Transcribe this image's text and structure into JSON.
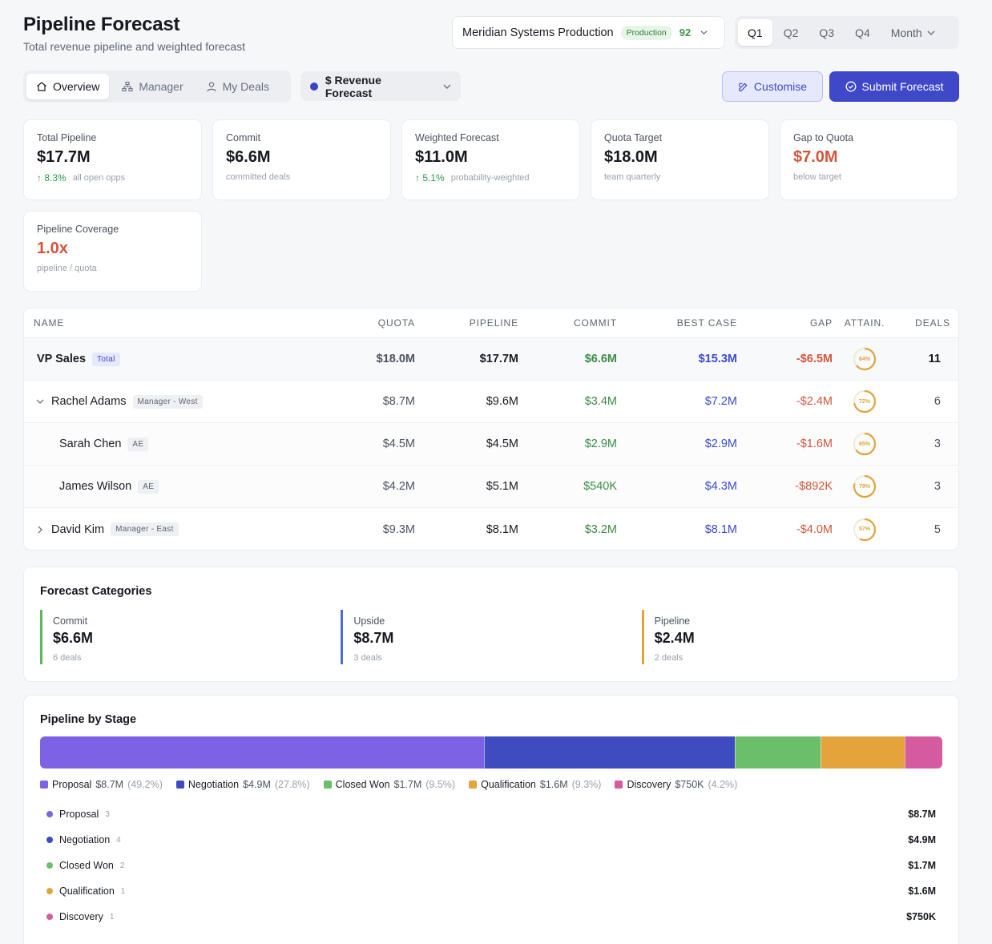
{
  "header": {
    "title": "Pipeline Forecast",
    "subtitle": "Total revenue pipeline and weighted forecast"
  },
  "org_select": {
    "name": "Meridian Systems Production",
    "badge": "Production",
    "score": "92"
  },
  "period": {
    "items": [
      "Q1",
      "Q2",
      "Q3",
      "Q4",
      "Month"
    ],
    "active": "Q1"
  },
  "tabs": [
    {
      "label": "Overview",
      "icon": "home-icon",
      "active": true
    },
    {
      "label": "Manager",
      "icon": "org-chart-icon",
      "active": false
    },
    {
      "label": "My Deals",
      "icon": "user-icon",
      "active": false
    }
  ],
  "forecast_select": {
    "label": "$ Revenue Forecast",
    "color": "#3b45c4"
  },
  "actions": {
    "customise": "Customise",
    "submit": "Submit Forecast"
  },
  "kpis": [
    {
      "label": "Total Pipeline",
      "value": "$17.7M",
      "trend": "8.3%",
      "foot": "all open opps",
      "tone": "normal"
    },
    {
      "label": "Commit",
      "value": "$6.6M",
      "trend": "",
      "foot": "committed deals",
      "tone": "normal"
    },
    {
      "label": "Weighted Forecast",
      "value": "$11.0M",
      "trend": "5.1%",
      "foot": "probability-weighted",
      "tone": "normal"
    },
    {
      "label": "Quota Target",
      "value": "$18.0M",
      "trend": "",
      "foot": "team quarterly",
      "tone": "normal"
    },
    {
      "label": "Gap to Quota",
      "value": "$7.0M",
      "trend": "",
      "foot": "below target",
      "tone": "red"
    },
    {
      "label": "Pipeline Coverage",
      "value": "1.0x",
      "trend": "",
      "foot": "pipeline / quota",
      "tone": "red"
    }
  ],
  "table": {
    "headers": [
      "NAME",
      "QUOTA",
      "PIPELINE",
      "COMMIT",
      "BEST CASE",
      "GAP",
      "ATTAIN.",
      "DEALS"
    ],
    "rows": [
      {
        "name": "VP Sales",
        "tag": "Total",
        "quota": "$18.0M",
        "pipeline": "$17.7M",
        "commit": "$6.6M",
        "best": "$15.3M",
        "gap": "-$6.5M",
        "attain": "64%",
        "attain_value": 0.64,
        "deals": "11",
        "kind": "total"
      },
      {
        "name": "Rachel Adams",
        "tag": "Manager - West",
        "quota": "$8.7M",
        "pipeline": "$9.6M",
        "commit": "$3.4M",
        "best": "$7.2M",
        "gap": "-$2.4M",
        "attain": "72%",
        "attain_value": 0.72,
        "deals": "6",
        "kind": "manager",
        "expanded": true
      },
      {
        "name": "Sarah Chen",
        "tag": "AE",
        "quota": "$4.5M",
        "pipeline": "$4.5M",
        "commit": "$2.9M",
        "best": "$2.9M",
        "gap": "-$1.6M",
        "attain": "65%",
        "attain_value": 0.65,
        "deals": "3",
        "kind": "ae"
      },
      {
        "name": "James Wilson",
        "tag": "AE",
        "quota": "$4.2M",
        "pipeline": "$5.1M",
        "commit": "$540K",
        "best": "$4.3M",
        "gap": "-$892K",
        "attain": "79%",
        "attain_value": 0.79,
        "deals": "3",
        "kind": "ae"
      },
      {
        "name": "David Kim",
        "tag": "Manager - East",
        "quota": "$9.3M",
        "pipeline": "$8.1M",
        "commit": "$3.2M",
        "best": "$8.1M",
        "gap": "-$4.0M",
        "attain": "57%",
        "attain_value": 0.57,
        "deals": "5",
        "kind": "manager",
        "expanded": false
      }
    ]
  },
  "forecast_categories": {
    "title": "Forecast Categories",
    "items": [
      {
        "label": "Commit",
        "value": "$6.6M",
        "count": "6 deals",
        "color": "#5cb85c"
      },
      {
        "label": "Upside",
        "value": "$8.7M",
        "count": "3 deals",
        "color": "#4a70d8"
      },
      {
        "label": "Pipeline",
        "value": "$2.4M",
        "count": "2 deals",
        "color": "#e0a53d"
      }
    ]
  },
  "pipeline_by_stage": {
    "title": "Pipeline by Stage",
    "stages": [
      {
        "name": "Proposal",
        "value": "$8.7M",
        "pct": "(49.2%)",
        "share": 49.2,
        "count": "3",
        "color": "#7e62e6"
      },
      {
        "name": "Negotiation",
        "value": "$4.9M",
        "pct": "(27.8%)",
        "share": 27.8,
        "count": "4",
        "color": "#3f4cc0"
      },
      {
        "name": "Closed Won",
        "value": "$1.7M",
        "pct": "(9.5%)",
        "share": 9.5,
        "count": "2",
        "color": "#6cbf6a"
      },
      {
        "name": "Qualification",
        "value": "$1.6M",
        "pct": "(9.3%)",
        "share": 9.3,
        "count": "1",
        "color": "#e3a43c"
      },
      {
        "name": "Discovery",
        "value": "$750K",
        "pct": "(4.2%)",
        "share": 4.2,
        "count": "1",
        "color": "#d65a9e"
      }
    ]
  }
}
